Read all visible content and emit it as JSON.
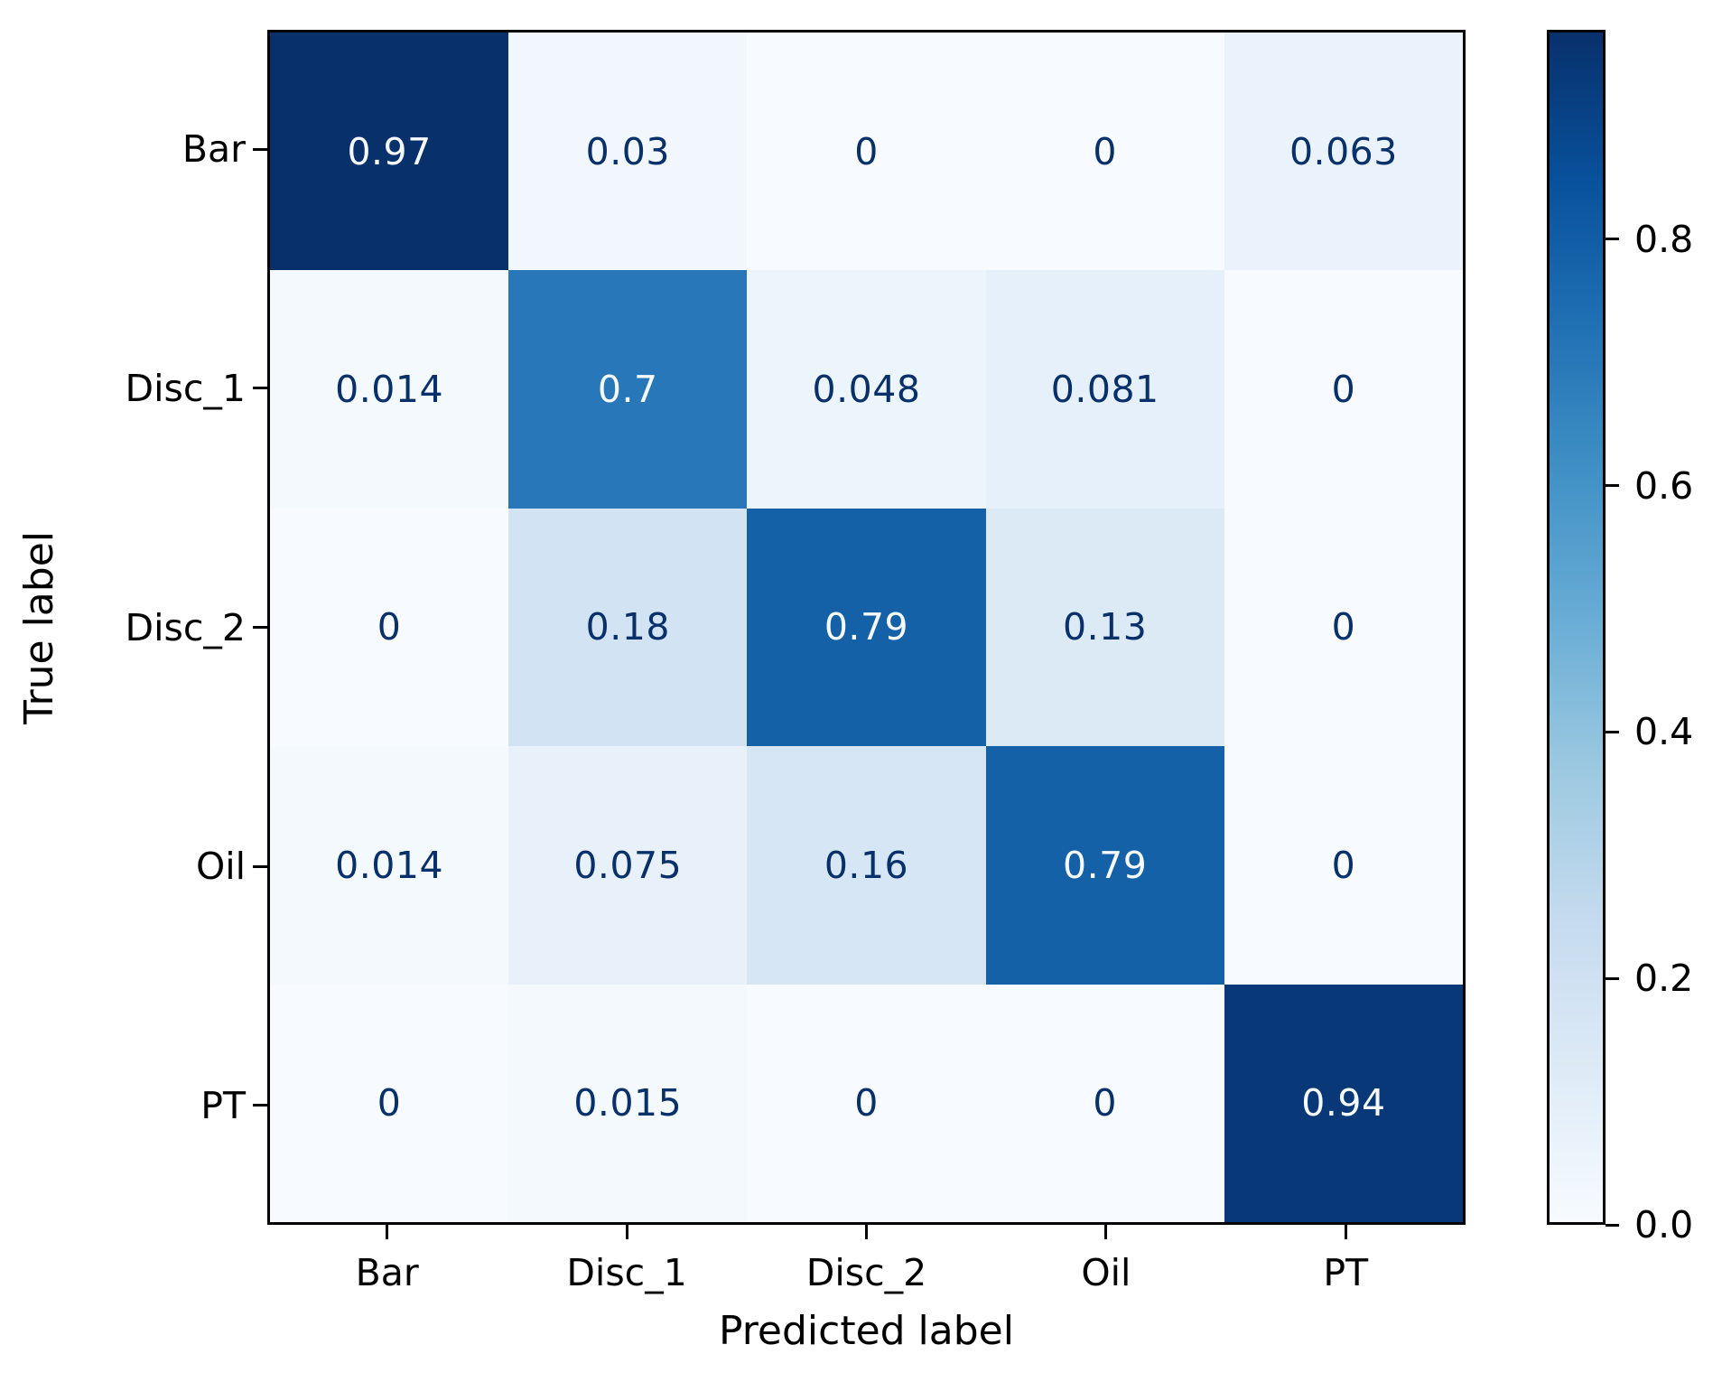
{
  "chart_data": {
    "type": "heatmap",
    "title": "",
    "xlabel": "Predicted label",
    "ylabel": "True label",
    "categories": [
      "Bar",
      "Disc_1",
      "Disc_2",
      "Oil",
      "PT"
    ],
    "matrix": [
      [
        0.97,
        0.03,
        0,
        0,
        0.063
      ],
      [
        0.014,
        0.7,
        0.048,
        0.081,
        0
      ],
      [
        0,
        0.18,
        0.79,
        0.13,
        0
      ],
      [
        0.014,
        0.075,
        0.16,
        0.79,
        0
      ],
      [
        0,
        0.015,
        0,
        0,
        0.94
      ]
    ],
    "cell_labels": [
      [
        "0.97",
        "0.03",
        "0",
        "0",
        "0.063"
      ],
      [
        "0.014",
        "0.7",
        "0.048",
        "0.081",
        "0"
      ],
      [
        "0",
        "0.18",
        "0.79",
        "0.13",
        "0"
      ],
      [
        "0.014",
        "0.075",
        "0.16",
        "0.79",
        "0"
      ],
      [
        "0",
        "0.015",
        "0",
        "0",
        "0.94"
      ]
    ],
    "cell_colors": [
      [
        "#08306b",
        "#f1f7fd",
        "#f7fbff",
        "#f7fbff",
        "#eaf3fb"
      ],
      [
        "#f4f9fe",
        "#2878b9",
        "#edf5fc",
        "#e6f0fa",
        "#f7fbff"
      ],
      [
        "#f7fbff",
        "#d2e3f3",
        "#1461a8",
        "#dceaf6",
        "#f7fbff"
      ],
      [
        "#f4f9fe",
        "#e8f1fa",
        "#d6e6f4",
        "#1461a8",
        "#f7fbff"
      ],
      [
        "#f7fbff",
        "#f4f9fe",
        "#f7fbff",
        "#f7fbff",
        "#083877"
      ]
    ],
    "cell_text_colors": [
      [
        "#f7fbff",
        "#08306b",
        "#08306b",
        "#08306b",
        "#08306b"
      ],
      [
        "#08306b",
        "#f7fbff",
        "#08306b",
        "#08306b",
        "#08306b"
      ],
      [
        "#08306b",
        "#08306b",
        "#f7fbff",
        "#08306b",
        "#08306b"
      ],
      [
        "#08306b",
        "#08306b",
        "#08306b",
        "#f7fbff",
        "#08306b"
      ],
      [
        "#08306b",
        "#08306b",
        "#08306b",
        "#08306b",
        "#f7fbff"
      ]
    ],
    "colormap": "Blues",
    "axis_color": "#000000",
    "grid": false,
    "colorbar": {
      "vmin": 0.0,
      "vmax": 0.97,
      "position": "right",
      "ticks": [
        {
          "label": "0.8",
          "value": 0.8
        },
        {
          "label": "0.6",
          "value": 0.6
        },
        {
          "label": "0.4",
          "value": 0.4
        },
        {
          "label": "0.2",
          "value": 0.2
        },
        {
          "label": "0.0",
          "value": 0.0
        }
      ],
      "gradient_stops": [
        "#f7fbff",
        "#deebf7",
        "#c6dbef",
        "#9ecae1",
        "#6baed6",
        "#4292c6",
        "#2171b5",
        "#08519c",
        "#08306b"
      ]
    }
  }
}
